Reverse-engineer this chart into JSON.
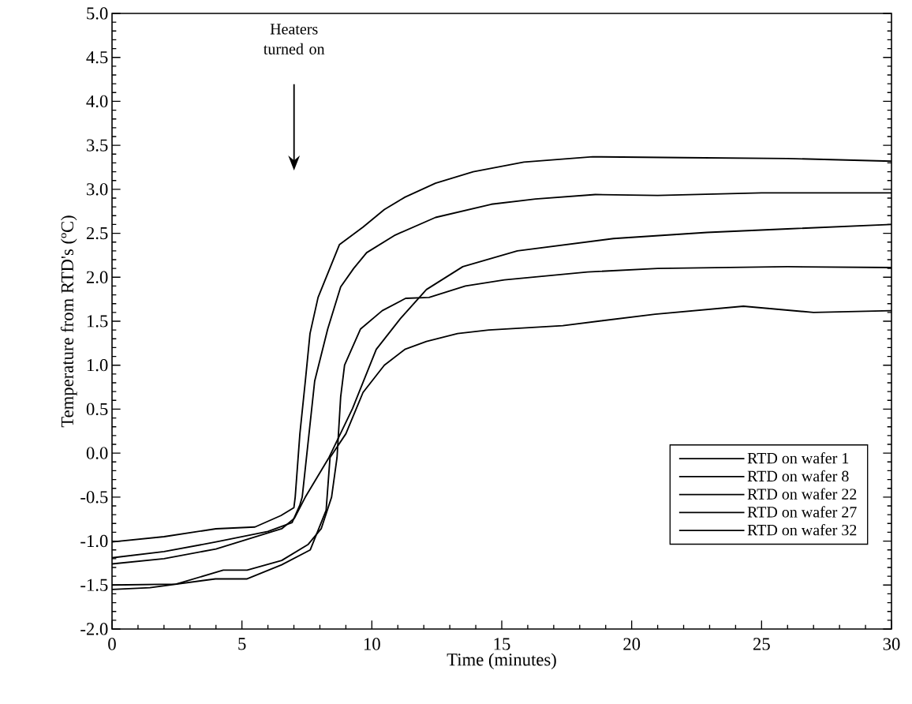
{
  "chart_data": {
    "type": "line",
    "xlabel": "Time (minutes)",
    "ylabel": "Temperature from RTD's (ºC)",
    "xlim": [
      0,
      30
    ],
    "ylim": [
      -2.0,
      5.0
    ],
    "xticks": [
      0,
      5,
      10,
      15,
      20,
      25,
      30
    ],
    "yticks": [
      {
        "value": -2.0,
        "label": "-2.0"
      },
      {
        "value": -1.5,
        "label": "-1.5"
      },
      {
        "value": -1.0,
        "label": "-1.0"
      },
      {
        "value": -0.5,
        "label": "-0.5"
      },
      {
        "value": 0.0,
        "label": "0.0"
      },
      {
        "value": 0.5,
        "label": "0.5"
      },
      {
        "value": 1.0,
        "label": "1.0"
      },
      {
        "value": 1.5,
        "label": "1.5"
      },
      {
        "value": 2.0,
        "label": "2.0"
      },
      {
        "value": 2.5,
        "label": "2.5"
      },
      {
        "value": 3.0,
        "label": "3.0"
      },
      {
        "value": 3.5,
        "label": "3.5"
      },
      {
        "value": 4.0,
        "label": "4.0"
      },
      {
        "value": 4.5,
        "label": "4.5"
      },
      {
        "value": 5.0,
        "label": "5.0"
      }
    ],
    "grid": false,
    "legend": "bottom right",
    "marker": "none",
    "line_style": "solid",
    "annotations": [
      "Heaters turned on"
    ],
    "series": [
      {
        "name": "RTD on wafer 1",
        "color": "#000000",
        "x": [
          0,
          2,
          4,
          5.5,
          6.5,
          7.0,
          7.05,
          7.23,
          7.44,
          7.62,
          7.93,
          8.75,
          9.66,
          10.48,
          11.27,
          12.45,
          13.9,
          15.85,
          18.5,
          22,
          26,
          30
        ],
        "values": [
          -1.01,
          -0.95,
          -0.86,
          -0.84,
          -0.71,
          -0.62,
          -0.5,
          0.22,
          0.82,
          1.36,
          1.77,
          2.37,
          2.57,
          2.77,
          2.91,
          3.07,
          3.2,
          3.31,
          3.37,
          3.36,
          3.35,
          3.32
        ]
      },
      {
        "name": "RTD on wafer 8",
        "color": "#000000",
        "x": [
          0,
          2,
          4,
          6.0,
          6.93,
          7.23,
          7.32,
          7.8,
          8.3,
          8.8,
          9.3,
          9.8,
          10.9,
          12.45,
          14.6,
          16.3,
          18.6,
          21,
          25,
          30
        ],
        "values": [
          -1.19,
          -1.12,
          -1.01,
          -0.89,
          -0.79,
          -0.59,
          -0.5,
          0.82,
          1.41,
          1.89,
          2.1,
          2.28,
          2.48,
          2.68,
          2.83,
          2.89,
          2.94,
          2.93,
          2.96,
          2.96
        ]
      },
      {
        "name": "RTD on wafer 22",
        "color": "#000000",
        "x": [
          0,
          2,
          4,
          6.53,
          7.02,
          7.44,
          8.35,
          8.53,
          9.26,
          10.17,
          11.1,
          12.1,
          13.5,
          15.6,
          19.3,
          22.9,
          26,
          30
        ],
        "values": [
          -1.26,
          -1.2,
          -1.09,
          -0.86,
          -0.74,
          -0.5,
          -0.05,
          0.06,
          0.51,
          1.18,
          1.53,
          1.86,
          2.12,
          2.3,
          2.44,
          2.51,
          2.55,
          2.6
        ]
      },
      {
        "name": "RTD on wafer 27",
        "color": "#000000",
        "x": [
          0,
          2.46,
          4.28,
          5.2,
          6.53,
          7.54,
          8.05,
          8.45,
          8.66,
          8.8,
          8.95,
          9.56,
          10.4,
          11.3,
          12.2,
          13.6,
          15.1,
          18.3,
          21,
          26,
          30
        ],
        "values": [
          -1.5,
          -1.49,
          -1.33,
          -1.33,
          -1.22,
          -1.04,
          -0.86,
          -0.5,
          -0.05,
          0.64,
          1.0,
          1.41,
          1.62,
          1.76,
          1.77,
          1.9,
          1.97,
          2.06,
          2.1,
          2.12,
          2.11
        ]
      },
      {
        "name": "RTD on wafer 32",
        "color": "#000000",
        "x": [
          0,
          1.46,
          3.98,
          5.2,
          6.53,
          7.63,
          8.24,
          8.39,
          9.0,
          9.66,
          10.48,
          11.27,
          12.1,
          13.3,
          14.5,
          17.35,
          20.9,
          24.3,
          27,
          30
        ],
        "values": [
          -1.55,
          -1.53,
          -1.43,
          -1.43,
          -1.27,
          -1.1,
          -0.65,
          -0.05,
          0.22,
          0.69,
          1.0,
          1.18,
          1.27,
          1.36,
          1.4,
          1.45,
          1.58,
          1.67,
          1.6,
          1.62
        ]
      }
    ]
  }
}
